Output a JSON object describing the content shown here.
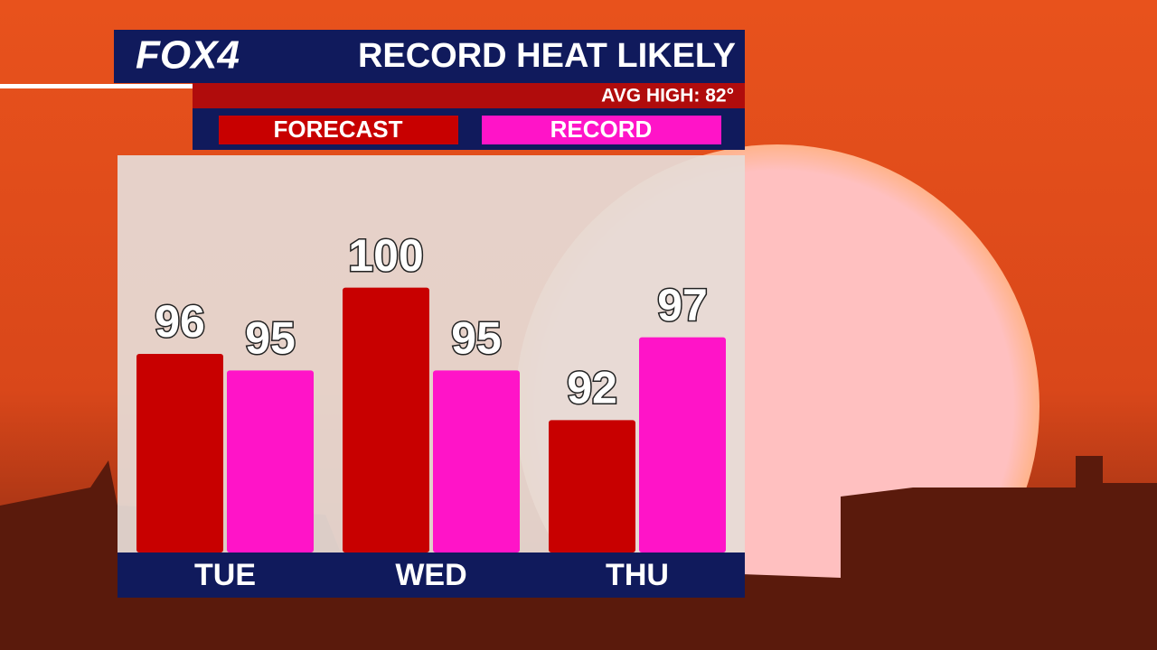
{
  "logo": "FOX4",
  "chart_data": {
    "type": "bar",
    "title": "RECORD HEAT LIKELY",
    "subtitle": "AVG HIGH: 82°",
    "categories": [
      "TUE",
      "WED",
      "THU"
    ],
    "series": [
      {
        "name": "FORECAST",
        "color": "#c80000",
        "values": [
          96,
          100,
          92
        ]
      },
      {
        "name": "RECORD",
        "color": "#ff14c8",
        "values": [
          95,
          95,
          97
        ]
      }
    ],
    "ylim": [
      84,
      108
    ]
  }
}
